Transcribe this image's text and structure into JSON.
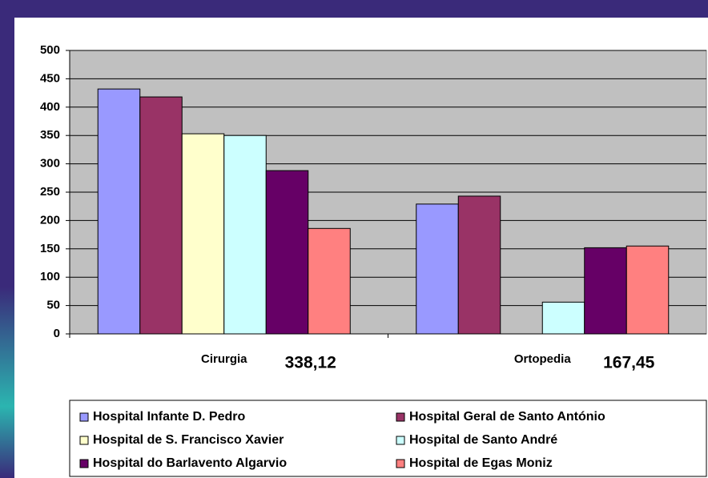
{
  "chart_data": {
    "type": "bar",
    "categories": [
      "Cirurgia",
      "Ortopedia"
    ],
    "annotations": [
      "338,12",
      "167,45"
    ],
    "series": [
      {
        "name": "Hospital Infante D. Pedro",
        "color": "#9999ff",
        "values": [
          432,
          229
        ]
      },
      {
        "name": "Hospital Geral de Santo António",
        "color": "#993366",
        "values": [
          418,
          243
        ]
      },
      {
        "name": "Hospital de S. Francisco Xavier",
        "color": "#ffffcc",
        "values": [
          353,
          null
        ]
      },
      {
        "name": "Hospital de Santo André",
        "color": "#ccffff",
        "values": [
          350,
          56
        ]
      },
      {
        "name": "Hospital do Barlavento Algarvio",
        "color": "#660066",
        "values": [
          288,
          152
        ]
      },
      {
        "name": "Hospital de Egas Moniz",
        "color": "#ff8080",
        "values": [
          186,
          155
        ]
      }
    ],
    "ylim": [
      0,
      500
    ],
    "yticks": [
      0,
      50,
      100,
      150,
      200,
      250,
      300,
      350,
      400,
      450,
      500
    ],
    "grid": true,
    "legend": "bottom"
  }
}
